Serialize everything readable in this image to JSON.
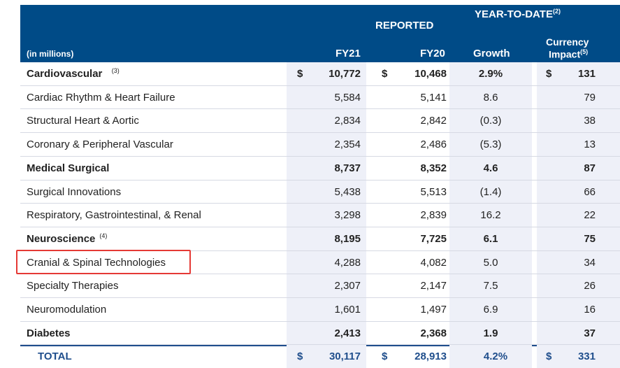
{
  "header": {
    "unit_label": "(in millions)",
    "fy21": "FY21",
    "reported": "REPORTED",
    "fy20": "FY20",
    "ytd": "YEAR-TO-DATE",
    "ytd_sup": "(2)",
    "growth": "Growth",
    "currency_line1": "Currency",
    "currency_line2": "Impact",
    "currency_sup": "(5)"
  },
  "rows": [
    {
      "label": "Cardiovascular",
      "sup": "(3)",
      "dollar1": "$",
      "fy21": "10,772",
      "dollar2": "$",
      "fy20": "10,468",
      "growth": "2.9%",
      "dollar3": "$",
      "impact": "131",
      "bold": true
    },
    {
      "label": "Cardiac Rhythm & Heart Failure",
      "fy21": "5,584",
      "fy20": "5,141",
      "growth": "8.6",
      "impact": "79"
    },
    {
      "label": "Structural Heart & Aortic",
      "fy21": "2,834",
      "fy20": "2,842",
      "growth": "(0.3)",
      "impact": "38"
    },
    {
      "label": "Coronary & Peripheral Vascular",
      "fy21": "2,354",
      "fy20": "2,486",
      "growth": "(5.3)",
      "impact": "13"
    },
    {
      "label": "Medical Surgical",
      "fy21": "8,737",
      "fy20": "8,352",
      "growth": "4.6",
      "impact": "87",
      "bold": true
    },
    {
      "label": "Surgical Innovations",
      "fy21": "5,438",
      "fy20": "5,513",
      "growth": "(1.4)",
      "impact": "66"
    },
    {
      "label": "Respiratory, Gastrointestinal, & Renal",
      "fy21": "3,298",
      "fy20": "2,839",
      "growth": "16.2",
      "impact": "22"
    },
    {
      "label": "Neuroscience",
      "sup": "(4)",
      "fy21": "8,195",
      "fy20": "7,725",
      "growth": "6.1",
      "impact": "75",
      "bold": true
    },
    {
      "label": "Cranial & Spinal Technologies",
      "fy21": "4,288",
      "fy20": "4,082",
      "growth": "5.0",
      "impact": "34"
    },
    {
      "label": "Specialty Therapies",
      "fy21": "2,307",
      "fy20": "2,147",
      "growth": "7.5",
      "impact": "26"
    },
    {
      "label": "Neuromodulation",
      "fy21": "1,601",
      "fy20": "1,497",
      "growth": "6.9",
      "impact": "16"
    },
    {
      "label": "Diabetes",
      "fy21": "2,413",
      "fy20": "2,368",
      "growth": "1.9",
      "impact": "37",
      "bold": true
    }
  ],
  "total": {
    "label": "TOTAL",
    "dollar1": "$",
    "fy21": "30,117",
    "dollar2": "$",
    "fy20": "28,913",
    "growth": "4.2%",
    "dollar3": "$",
    "impact": "331"
  }
}
